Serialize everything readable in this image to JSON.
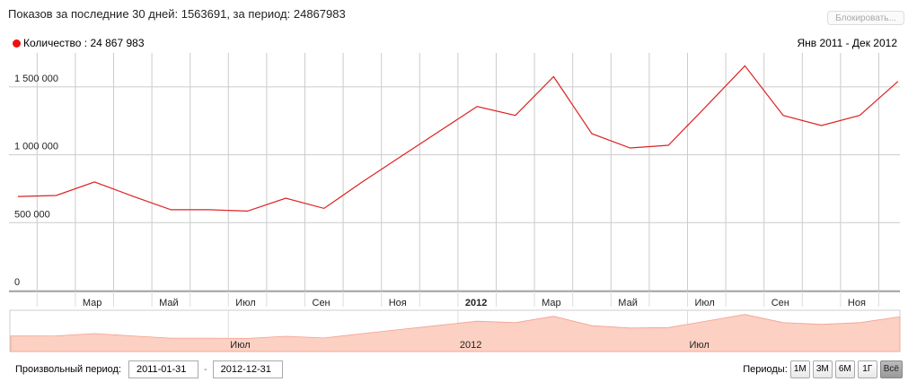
{
  "header": {
    "summary": "Показов за последние 30 дней: 1563691, за период: 24867983",
    "block_button": "Блокировать..."
  },
  "legend": {
    "label": "Количество : 24 867 983",
    "color": "#ee1111"
  },
  "range_label": "Янв 2011 - Дек 2012",
  "colors": {
    "line": "#dd2222",
    "navigator_fill": "#fcd0c2",
    "navigator_stroke": "#f4a090",
    "grid": "#cccccc"
  },
  "chart_data": {
    "type": "line",
    "x": [
      "2011-01",
      "2011-02",
      "2011-03",
      "2011-04",
      "2011-05",
      "2011-06",
      "2011-07",
      "2011-08",
      "2011-09",
      "2011-10",
      "2011-11",
      "2011-12",
      "2012-01",
      "2012-02",
      "2012-03",
      "2012-04",
      "2012-05",
      "2012-06",
      "2012-07",
      "2012-08",
      "2012-09",
      "2012-10",
      "2012-11",
      "2012-12"
    ],
    "series": [
      {
        "name": "Количество",
        "values": [
          693000,
          700000,
          800000,
          695000,
          595000,
          595000,
          585000,
          680000,
          605000,
          800000,
          985000,
          1170000,
          1355000,
          1290000,
          1575000,
          1155000,
          1050000,
          1070000,
          1360000,
          1655000,
          1290000,
          1215000,
          1290000,
          1540000
        ]
      }
    ],
    "ylim": [
      0,
      1750000
    ],
    "y_ticks": [
      {
        "value": 0,
        "label": "0"
      },
      {
        "value": 500000,
        "label": "500 000"
      },
      {
        "value": 1000000,
        "label": "1 000 000"
      },
      {
        "value": 1500000,
        "label": "1 500 000"
      }
    ],
    "x_ticks": [
      {
        "x": "2011-03",
        "label": "Мар",
        "bold": false
      },
      {
        "x": "2011-05",
        "label": "Май",
        "bold": false
      },
      {
        "x": "2011-07",
        "label": "Июл",
        "bold": false
      },
      {
        "x": "2011-09",
        "label": "Сен",
        "bold": false
      },
      {
        "x": "2011-11",
        "label": "Ноя",
        "bold": false
      },
      {
        "x": "2012-01",
        "label": "2012",
        "bold": true
      },
      {
        "x": "2012-03",
        "label": "Мар",
        "bold": false
      },
      {
        "x": "2012-05",
        "label": "Май",
        "bold": false
      },
      {
        "x": "2012-07",
        "label": "Июл",
        "bold": false
      },
      {
        "x": "2012-09",
        "label": "Сен",
        "bold": false
      },
      {
        "x": "2012-11",
        "label": "Ноя",
        "bold": false
      }
    ],
    "navigator_ticks": [
      {
        "x": "2011-07",
        "label": "Июл"
      },
      {
        "x": "2012-01",
        "label": "2012"
      },
      {
        "x": "2012-07",
        "label": "Июл"
      }
    ],
    "grid": true,
    "legend_position": "top-left"
  },
  "footer": {
    "custom_period_label": "Произвольный период:",
    "date_from": "2011-01-31",
    "date_to": "2012-12-31",
    "separator": "-",
    "periods_label": "Периоды:",
    "periods": [
      {
        "label": "1М",
        "active": false
      },
      {
        "label": "3М",
        "active": false
      },
      {
        "label": "6М",
        "active": false
      },
      {
        "label": "1Г",
        "active": false
      },
      {
        "label": "Всё",
        "active": true
      }
    ]
  }
}
